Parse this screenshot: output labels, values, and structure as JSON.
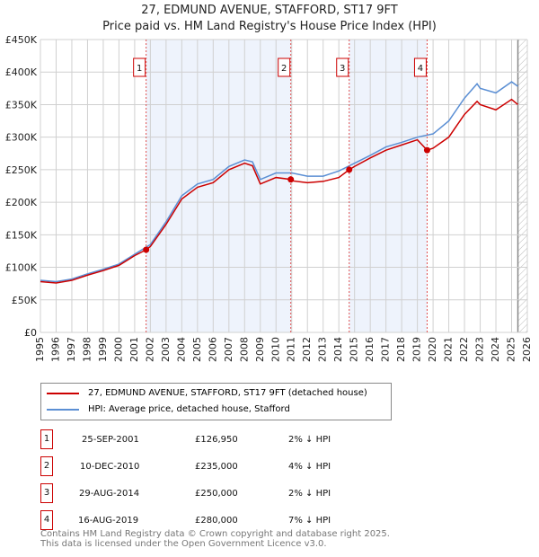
{
  "chart_data": {
    "type": "line",
    "title": "27, EDMUND AVENUE, STAFFORD, ST17 9FT",
    "subtitle": "Price paid vs. HM Land Registry's House Price Index (HPI)",
    "xlim": [
      1995,
      2026
    ],
    "ylim": [
      0,
      450000
    ],
    "x_ticks": [
      "1995",
      "1996",
      "1997",
      "1998",
      "1999",
      "2000",
      "2001",
      "2002",
      "2003",
      "2004",
      "2005",
      "2006",
      "2007",
      "2008",
      "2009",
      "2010",
      "2011",
      "2012",
      "2013",
      "2014",
      "2015",
      "2016",
      "2017",
      "2018",
      "2019",
      "2020",
      "2021",
      "2022",
      "2023",
      "2024",
      "2025",
      "2026"
    ],
    "y_ticks": [
      {
        "v": 0,
        "label": "£0"
      },
      {
        "v": 50000,
        "label": "£50K"
      },
      {
        "v": 100000,
        "label": "£100K"
      },
      {
        "v": 150000,
        "label": "£150K"
      },
      {
        "v": 200000,
        "label": "£200K"
      },
      {
        "v": 250000,
        "label": "£250K"
      },
      {
        "v": 300000,
        "label": "£300K"
      },
      {
        "v": 350000,
        "label": "£350K"
      },
      {
        "v": 400000,
        "label": "£400K"
      },
      {
        "v": 450000,
        "label": "£450K"
      }
    ],
    "grid": true,
    "series": [
      {
        "name": "27, EDMUND AVENUE, STAFFORD, ST17 9FT (detached house)",
        "color": "#cc0000",
        "x": [
          1995,
          1996,
          1997,
          1998,
          1999,
          2000,
          2001,
          2001.73,
          2002,
          2003,
          2004,
          2005,
          2006,
          2007,
          2008,
          2008.5,
          2009,
          2010,
          2010.94,
          2011,
          2012,
          2013,
          2014,
          2014.66,
          2015,
          2016,
          2017,
          2018,
          2019,
          2019.62,
          2020,
          2021,
          2022,
          2022.8,
          2023,
          2024,
          2025,
          2025.4
        ],
        "y": [
          78000,
          76000,
          80000,
          88000,
          95000,
          103000,
          118000,
          126950,
          132000,
          166000,
          205000,
          223000,
          230000,
          250000,
          260000,
          256000,
          228000,
          238000,
          235000,
          233000,
          230000,
          232000,
          238000,
          250000,
          255000,
          268000,
          280000,
          288000,
          296000,
          280000,
          283000,
          300000,
          335000,
          355000,
          350000,
          342000,
          358000,
          350000
        ]
      },
      {
        "name": "HPI: Average price, detached house, Stafford",
        "color": "#5b8fd4",
        "x": [
          1995,
          1996,
          1997,
          1998,
          1999,
          2000,
          2001,
          2002,
          2003,
          2004,
          2005,
          2006,
          2007,
          2008,
          2008.5,
          2009,
          2010,
          2011,
          2012,
          2013,
          2014,
          2015,
          2016,
          2017,
          2018,
          2019,
          2020,
          2021,
          2022,
          2022.8,
          2023,
          2024,
          2025,
          2025.4
        ],
        "y": [
          80000,
          78000,
          82000,
          90000,
          97000,
          105000,
          120000,
          135000,
          170000,
          210000,
          228000,
          235000,
          255000,
          265000,
          262000,
          235000,
          245000,
          245000,
          240000,
          240000,
          248000,
          260000,
          272000,
          285000,
          292000,
          300000,
          305000,
          325000,
          360000,
          382000,
          375000,
          368000,
          385000,
          378000
        ]
      }
    ],
    "sales": [
      {
        "n": "1",
        "x": 2001.73,
        "date": "25-SEP-2001",
        "price": "£126,950",
        "value": 126950,
        "hpi": "2% ↓ HPI"
      },
      {
        "n": "2",
        "x": 2010.94,
        "date": "10-DEC-2010",
        "price": "£235,000",
        "value": 235000,
        "hpi": "4% ↓ HPI"
      },
      {
        "n": "3",
        "x": 2014.66,
        "date": "29-AUG-2014",
        "price": "£250,000",
        "value": 250000,
        "hpi": "2% ↓ HPI"
      },
      {
        "n": "4",
        "x": 2019.62,
        "date": "16-AUG-2019",
        "price": "£280,000",
        "value": 280000,
        "hpi": "7% ↓ HPI"
      }
    ],
    "shaded": [
      [
        2001.73,
        2010.94
      ],
      [
        2014.66,
        2019.62
      ]
    ],
    "hatched_from": 2025.4,
    "legend_placement": "below"
  },
  "footer": {
    "line1": "Contains HM Land Registry data © Crown copyright and database right 2025.",
    "line2": "This data is licensed under the Open Government Licence v3.0."
  }
}
